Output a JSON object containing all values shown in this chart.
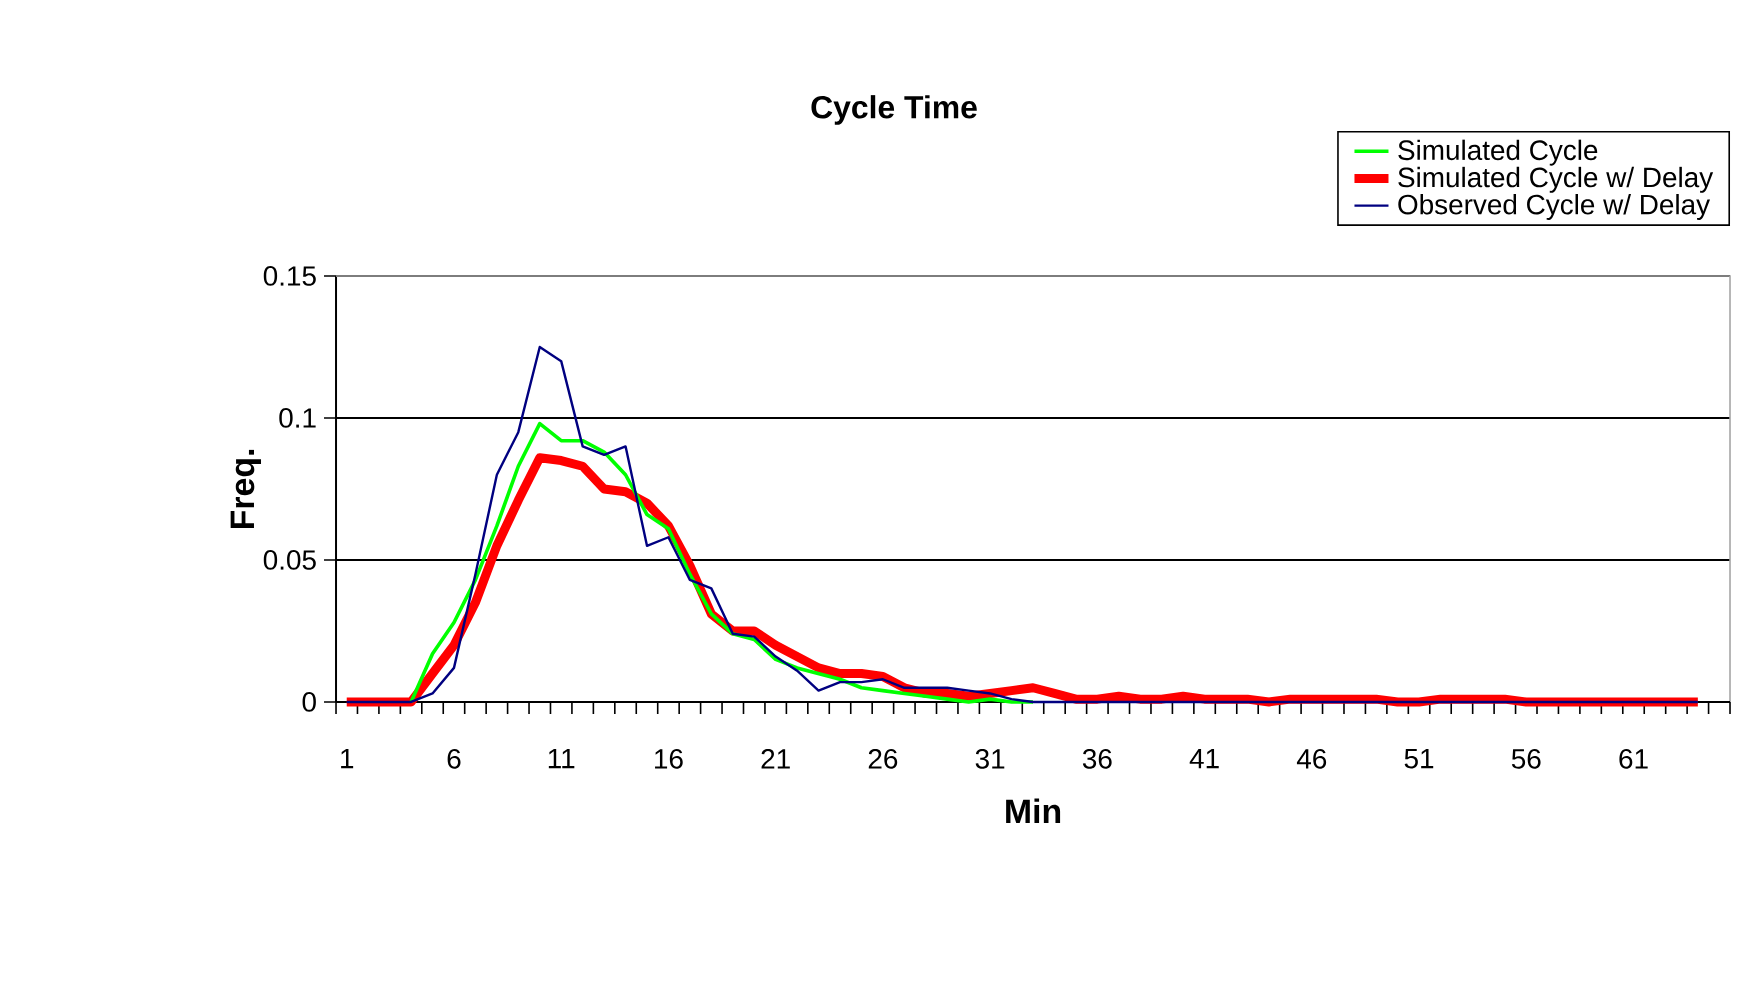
{
  "chart_data": {
    "type": "line",
    "title": "Cycle Time",
    "xlabel": "Min",
    "ylabel": "Freq.",
    "categories": [
      "1",
      null,
      null,
      null,
      null,
      "6",
      null,
      null,
      null,
      null,
      "11",
      null,
      null,
      null,
      null,
      "16",
      null,
      null,
      null,
      null,
      "21",
      null,
      null,
      null,
      null,
      "26",
      null,
      null,
      null,
      null,
      "31",
      null,
      null,
      null,
      null,
      "36",
      null,
      null,
      null,
      null,
      "41",
      null,
      null,
      null,
      null,
      "46",
      null,
      null,
      null,
      null,
      "51",
      null,
      null,
      null,
      null,
      "56",
      null,
      null,
      null,
      null,
      "61",
      null,
      null,
      null,
      null
    ],
    "series": [
      {
        "name": "Simulated Cycle",
        "color": "#00ff00",
        "values": [
          null,
          null,
          null,
          0,
          0.017,
          0.028,
          0.043,
          0.062,
          0.083,
          0.098,
          0.092,
          0.092,
          0.088,
          0.08,
          0.066,
          0.061,
          0.045,
          0.031,
          0.024,
          0.022,
          0.015,
          0.012,
          0.01,
          0.008,
          0.005,
          0.004,
          0.003,
          0.002,
          0.001,
          0,
          0.001,
          0,
          0,
          null,
          null,
          null,
          null,
          null,
          null,
          null,
          null,
          null,
          null,
          null,
          null,
          null,
          null,
          null,
          null,
          null,
          null,
          null,
          null,
          null,
          null,
          null,
          null,
          null,
          null,
          null,
          null,
          null,
          null,
          null,
          null
        ]
      },
      {
        "name": "Simulated Cycle  w/ Delay",
        "color": "#ff0000",
        "values": [
          0,
          0,
          0,
          0,
          0.01,
          0.02,
          0.035,
          0.055,
          0.071,
          0.086,
          0.085,
          0.083,
          0.075,
          0.074,
          0.07,
          0.062,
          0.048,
          0.031,
          0.025,
          0.025,
          0.02,
          0.016,
          0.012,
          0.01,
          0.01,
          0.009,
          0.005,
          0.003,
          0.003,
          0.002,
          0.003,
          0.004,
          0.005,
          0.003,
          0.001,
          0.001,
          0.002,
          0.001,
          0.001,
          0.002,
          0.001,
          0.001,
          0.001,
          0,
          0.001,
          0.001,
          0.001,
          0.001,
          0.001,
          0,
          0,
          0.001,
          0.001,
          0.001,
          0.001,
          0,
          0,
          0,
          0,
          0,
          0,
          0,
          0,
          0,
          null
        ]
      },
      {
        "name": "Observed Cycle w/ Delay",
        "color": "#000080",
        "values": [
          0,
          0,
          0,
          0,
          0.003,
          0.012,
          0.045,
          0.08,
          0.095,
          0.125,
          0.12,
          0.09,
          0.087,
          0.09,
          0.055,
          0.058,
          0.043,
          0.04,
          0.024,
          0.023,
          0.016,
          0.011,
          0.004,
          0.007,
          0.007,
          0.008,
          0.005,
          0.005,
          0.005,
          0.004,
          0.003,
          0.001,
          0,
          0,
          0,
          0,
          0,
          0,
          0,
          0,
          0,
          0,
          0,
          0,
          0,
          0,
          0,
          0,
          0,
          0,
          0,
          0,
          0,
          0,
          0,
          0,
          0,
          0,
          0,
          0,
          0,
          0,
          0,
          0,
          null
        ]
      }
    ],
    "ylim": [
      0,
      0.15
    ],
    "yticks": [
      0,
      0.05,
      0.1,
      0.15
    ],
    "grid": "y",
    "legend": "top right"
  }
}
